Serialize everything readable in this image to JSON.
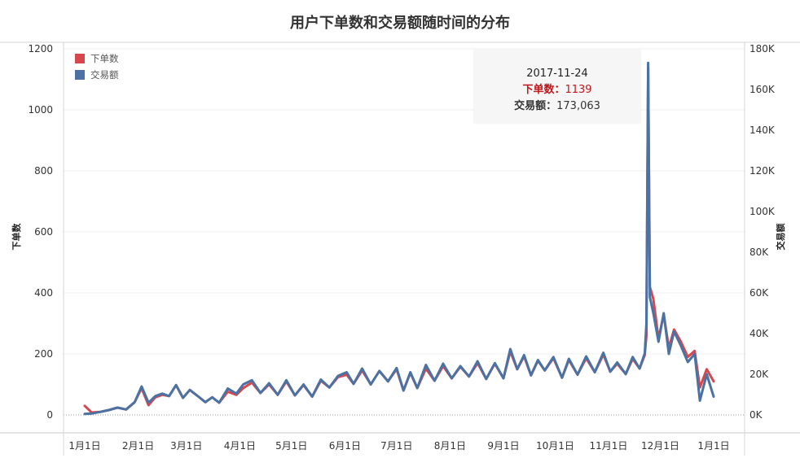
{
  "title": "用户下单数和交易额随时间的分布",
  "colors": {
    "orders": "#d9474e",
    "amount": "#4a72a3"
  },
  "legend": {
    "orders": "下单数",
    "amount": "交易额"
  },
  "tooltip": {
    "date": "2017-11-24",
    "orders_label": "下单数：",
    "orders_value": "1139",
    "amount_label": "交易额：",
    "amount_value": "173,063"
  },
  "chart_data": {
    "type": "line",
    "title": "用户下单数和交易额随时间的分布",
    "ylabel_left": "下单数",
    "ylabel_right": "交易额",
    "ylim_left": [
      0,
      1200
    ],
    "ylim_right": [
      0,
      180000
    ],
    "left_ticks": [
      "0",
      "200",
      "400",
      "600",
      "800",
      "1000",
      "1200"
    ],
    "right_ticks": [
      "0K",
      "20K",
      "40K",
      "60K",
      "80K",
      "100K",
      "120K",
      "140K",
      "160K",
      "180K"
    ],
    "x_ticks": [
      "1月1日",
      "2月1日",
      "3月1日",
      "4月1日",
      "5月1日",
      "6月1日",
      "7月1日",
      "8月1日",
      "9月1日",
      "10月1日",
      "11月1日",
      "12月1日",
      "1月1日"
    ],
    "x_tick_dates": [
      "2017-01-01",
      "2017-02-01",
      "2017-03-01",
      "2017-04-01",
      "2017-05-01",
      "2017-06-01",
      "2017-07-01",
      "2017-08-01",
      "2017-09-01",
      "2017-10-01",
      "2017-11-01",
      "2017-12-01",
      "2018-01-01"
    ],
    "grid": true,
    "legend_position": "top-left",
    "series": [
      {
        "name": "下单数",
        "axis": "left",
        "points": [
          [
            "2017-01-01",
            30
          ],
          [
            "2017-01-05",
            8
          ],
          [
            "2017-01-10",
            10
          ],
          [
            "2017-01-15",
            16
          ],
          [
            "2017-01-20",
            24
          ],
          [
            "2017-01-25",
            18
          ],
          [
            "2017-01-30",
            42
          ],
          [
            "2017-02-03",
            88
          ],
          [
            "2017-02-07",
            32
          ],
          [
            "2017-02-11",
            58
          ],
          [
            "2017-02-15",
            66
          ],
          [
            "2017-02-19",
            62
          ],
          [
            "2017-02-23",
            98
          ],
          [
            "2017-02-27",
            56
          ],
          [
            "2017-03-03",
            82
          ],
          [
            "2017-03-08",
            60
          ],
          [
            "2017-03-12",
            42
          ],
          [
            "2017-03-16",
            58
          ],
          [
            "2017-03-20",
            40
          ],
          [
            "2017-03-25",
            76
          ],
          [
            "2017-03-30",
            66
          ],
          [
            "2017-04-03",
            88
          ],
          [
            "2017-04-08",
            106
          ],
          [
            "2017-04-13",
            72
          ],
          [
            "2017-04-18",
            100
          ],
          [
            "2017-04-23",
            66
          ],
          [
            "2017-04-28",
            110
          ],
          [
            "2017-05-03",
            64
          ],
          [
            "2017-05-08",
            98
          ],
          [
            "2017-05-13",
            60
          ],
          [
            "2017-05-18",
            112
          ],
          [
            "2017-05-23",
            90
          ],
          [
            "2017-05-28",
            124
          ],
          [
            "2017-06-02",
            132
          ],
          [
            "2017-06-06",
            102
          ],
          [
            "2017-06-11",
            146
          ],
          [
            "2017-06-16",
            100
          ],
          [
            "2017-06-21",
            144
          ],
          [
            "2017-06-26",
            110
          ],
          [
            "2017-07-01",
            150
          ],
          [
            "2017-07-05",
            80
          ],
          [
            "2017-07-09",
            138
          ],
          [
            "2017-07-13",
            88
          ],
          [
            "2017-07-18",
            152
          ],
          [
            "2017-07-23",
            112
          ],
          [
            "2017-07-28",
            160
          ],
          [
            "2017-08-02",
            120
          ],
          [
            "2017-08-07",
            158
          ],
          [
            "2017-08-12",
            126
          ],
          [
            "2017-08-17",
            170
          ],
          [
            "2017-08-22",
            118
          ],
          [
            "2017-08-27",
            168
          ],
          [
            "2017-09-01",
            120
          ],
          [
            "2017-09-05",
            208
          ],
          [
            "2017-09-09",
            150
          ],
          [
            "2017-09-13",
            192
          ],
          [
            "2017-09-17",
            130
          ],
          [
            "2017-09-21",
            178
          ],
          [
            "2017-09-25",
            146
          ],
          [
            "2017-09-30",
            186
          ],
          [
            "2017-10-05",
            122
          ],
          [
            "2017-10-09",
            180
          ],
          [
            "2017-10-14",
            132
          ],
          [
            "2017-10-19",
            186
          ],
          [
            "2017-10-24",
            140
          ],
          [
            "2017-10-29",
            198
          ],
          [
            "2017-11-02",
            142
          ],
          [
            "2017-11-06",
            168
          ],
          [
            "2017-11-11",
            134
          ],
          [
            "2017-11-15",
            184
          ],
          [
            "2017-11-19",
            152
          ],
          [
            "2017-11-22",
            196
          ],
          [
            "2017-11-23",
            260
          ],
          [
            "2017-11-24",
            1139
          ],
          [
            "2017-11-25",
            420
          ],
          [
            "2017-11-27",
            380
          ],
          [
            "2017-11-30",
            250
          ],
          [
            "2017-12-03",
            330
          ],
          [
            "2017-12-06",
            220
          ],
          [
            "2017-12-09",
            280
          ],
          [
            "2017-12-13",
            240
          ],
          [
            "2017-12-17",
            190
          ],
          [
            "2017-12-21",
            210
          ],
          [
            "2017-12-24",
            90
          ],
          [
            "2017-12-28",
            150
          ],
          [
            "2018-01-01",
            110
          ]
        ]
      },
      {
        "name": "交易额",
        "axis": "right",
        "points": [
          [
            "2017-01-01",
            500
          ],
          [
            "2017-01-05",
            700
          ],
          [
            "2017-01-10",
            1500
          ],
          [
            "2017-01-15",
            2400
          ],
          [
            "2017-01-20",
            3600
          ],
          [
            "2017-01-25",
            2700
          ],
          [
            "2017-01-30",
            6300
          ],
          [
            "2017-02-03",
            14000
          ],
          [
            "2017-02-07",
            6000
          ],
          [
            "2017-02-11",
            9300
          ],
          [
            "2017-02-15",
            10500
          ],
          [
            "2017-02-19",
            9300
          ],
          [
            "2017-02-23",
            14700
          ],
          [
            "2017-02-27",
            8400
          ],
          [
            "2017-03-03",
            12300
          ],
          [
            "2017-03-08",
            9000
          ],
          [
            "2017-03-12",
            6300
          ],
          [
            "2017-03-16",
            8700
          ],
          [
            "2017-03-20",
            6000
          ],
          [
            "2017-03-25",
            13000
          ],
          [
            "2017-03-30",
            10500
          ],
          [
            "2017-04-03",
            15000
          ],
          [
            "2017-04-08",
            17100
          ],
          [
            "2017-04-13",
            10800
          ],
          [
            "2017-04-18",
            15600
          ],
          [
            "2017-04-23",
            9900
          ],
          [
            "2017-04-28",
            17100
          ],
          [
            "2017-05-03",
            9600
          ],
          [
            "2017-05-08",
            15000
          ],
          [
            "2017-05-13",
            9000
          ],
          [
            "2017-05-18",
            17400
          ],
          [
            "2017-05-23",
            13500
          ],
          [
            "2017-05-28",
            19200
          ],
          [
            "2017-06-02",
            21000
          ],
          [
            "2017-06-06",
            15300
          ],
          [
            "2017-06-11",
            22800
          ],
          [
            "2017-06-16",
            15000
          ],
          [
            "2017-06-21",
            21600
          ],
          [
            "2017-06-26",
            16500
          ],
          [
            "2017-07-01",
            23100
          ],
          [
            "2017-07-05",
            12000
          ],
          [
            "2017-07-09",
            21000
          ],
          [
            "2017-07-13",
            13200
          ],
          [
            "2017-07-18",
            24600
          ],
          [
            "2017-07-23",
            16800
          ],
          [
            "2017-07-28",
            25200
          ],
          [
            "2017-08-02",
            18000
          ],
          [
            "2017-08-07",
            24000
          ],
          [
            "2017-08-12",
            18900
          ],
          [
            "2017-08-17",
            26400
          ],
          [
            "2017-08-22",
            17700
          ],
          [
            "2017-08-27",
            25500
          ],
          [
            "2017-09-01",
            18000
          ],
          [
            "2017-09-05",
            32400
          ],
          [
            "2017-09-09",
            22500
          ],
          [
            "2017-09-13",
            29400
          ],
          [
            "2017-09-17",
            19500
          ],
          [
            "2017-09-21",
            27000
          ],
          [
            "2017-09-25",
            21900
          ],
          [
            "2017-09-30",
            28500
          ],
          [
            "2017-10-05",
            18300
          ],
          [
            "2017-10-09",
            27600
          ],
          [
            "2017-10-14",
            19800
          ],
          [
            "2017-10-19",
            28800
          ],
          [
            "2017-10-24",
            21000
          ],
          [
            "2017-10-29",
            30600
          ],
          [
            "2017-11-02",
            21300
          ],
          [
            "2017-11-06",
            25800
          ],
          [
            "2017-11-11",
            20100
          ],
          [
            "2017-11-15",
            28500
          ],
          [
            "2017-11-19",
            22800
          ],
          [
            "2017-11-22",
            30300
          ],
          [
            "2017-11-23",
            45000
          ],
          [
            "2017-11-24",
            173063
          ],
          [
            "2017-11-25",
            58000
          ],
          [
            "2017-11-27",
            50000
          ],
          [
            "2017-11-30",
            36000
          ],
          [
            "2017-12-03",
            50000
          ],
          [
            "2017-12-06",
            30000
          ],
          [
            "2017-12-09",
            41000
          ],
          [
            "2017-12-13",
            34000
          ],
          [
            "2017-12-17",
            26000
          ],
          [
            "2017-12-21",
            30000
          ],
          [
            "2017-12-24",
            7000
          ],
          [
            "2017-12-28",
            20000
          ],
          [
            "2018-01-01",
            9000
          ]
        ]
      }
    ]
  }
}
